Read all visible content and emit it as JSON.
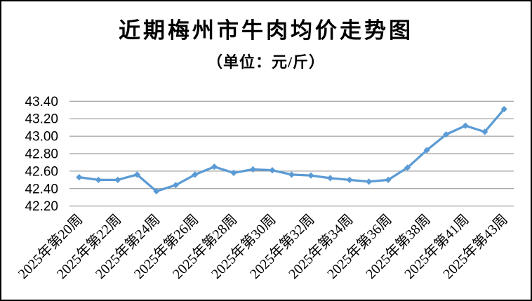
{
  "window": {
    "background_color": "#ffffff",
    "border_color": "#000000"
  },
  "chart_data": {
    "type": "line",
    "title": "近期梅州市牛肉均价走势图",
    "subtitle": "（单位：元/斤）",
    "unit": "元/斤",
    "n_points": 23,
    "values": [
      42.53,
      42.5,
      42.5,
      42.56,
      42.37,
      42.44,
      42.56,
      42.65,
      42.58,
      42.62,
      42.61,
      42.56,
      42.55,
      42.52,
      42.5,
      42.48,
      42.5,
      42.64,
      42.84,
      43.02,
      43.12,
      43.05,
      43.31
    ],
    "x_tick_labels": [
      "2025年第20周",
      "2025年第22周",
      "2025年第24周",
      "2025年第26周",
      "2025年第28周",
      "2025年第30周",
      "2025年第32周",
      "2025年第34周",
      "2025年第36周",
      "2025年第38周",
      "2025年第41周",
      "2025年第43周"
    ],
    "x_label_every": 2,
    "y_ticks": [
      43.4,
      43.2,
      43.0,
      42.8,
      42.6,
      42.4,
      42.2
    ],
    "ylim": [
      42.2,
      43.4
    ],
    "grid": true,
    "legend": "none",
    "line_color": "#5B9BD5",
    "gridline_color": "#8a8a8a",
    "text_color": "#000000",
    "marker": "diamond"
  }
}
